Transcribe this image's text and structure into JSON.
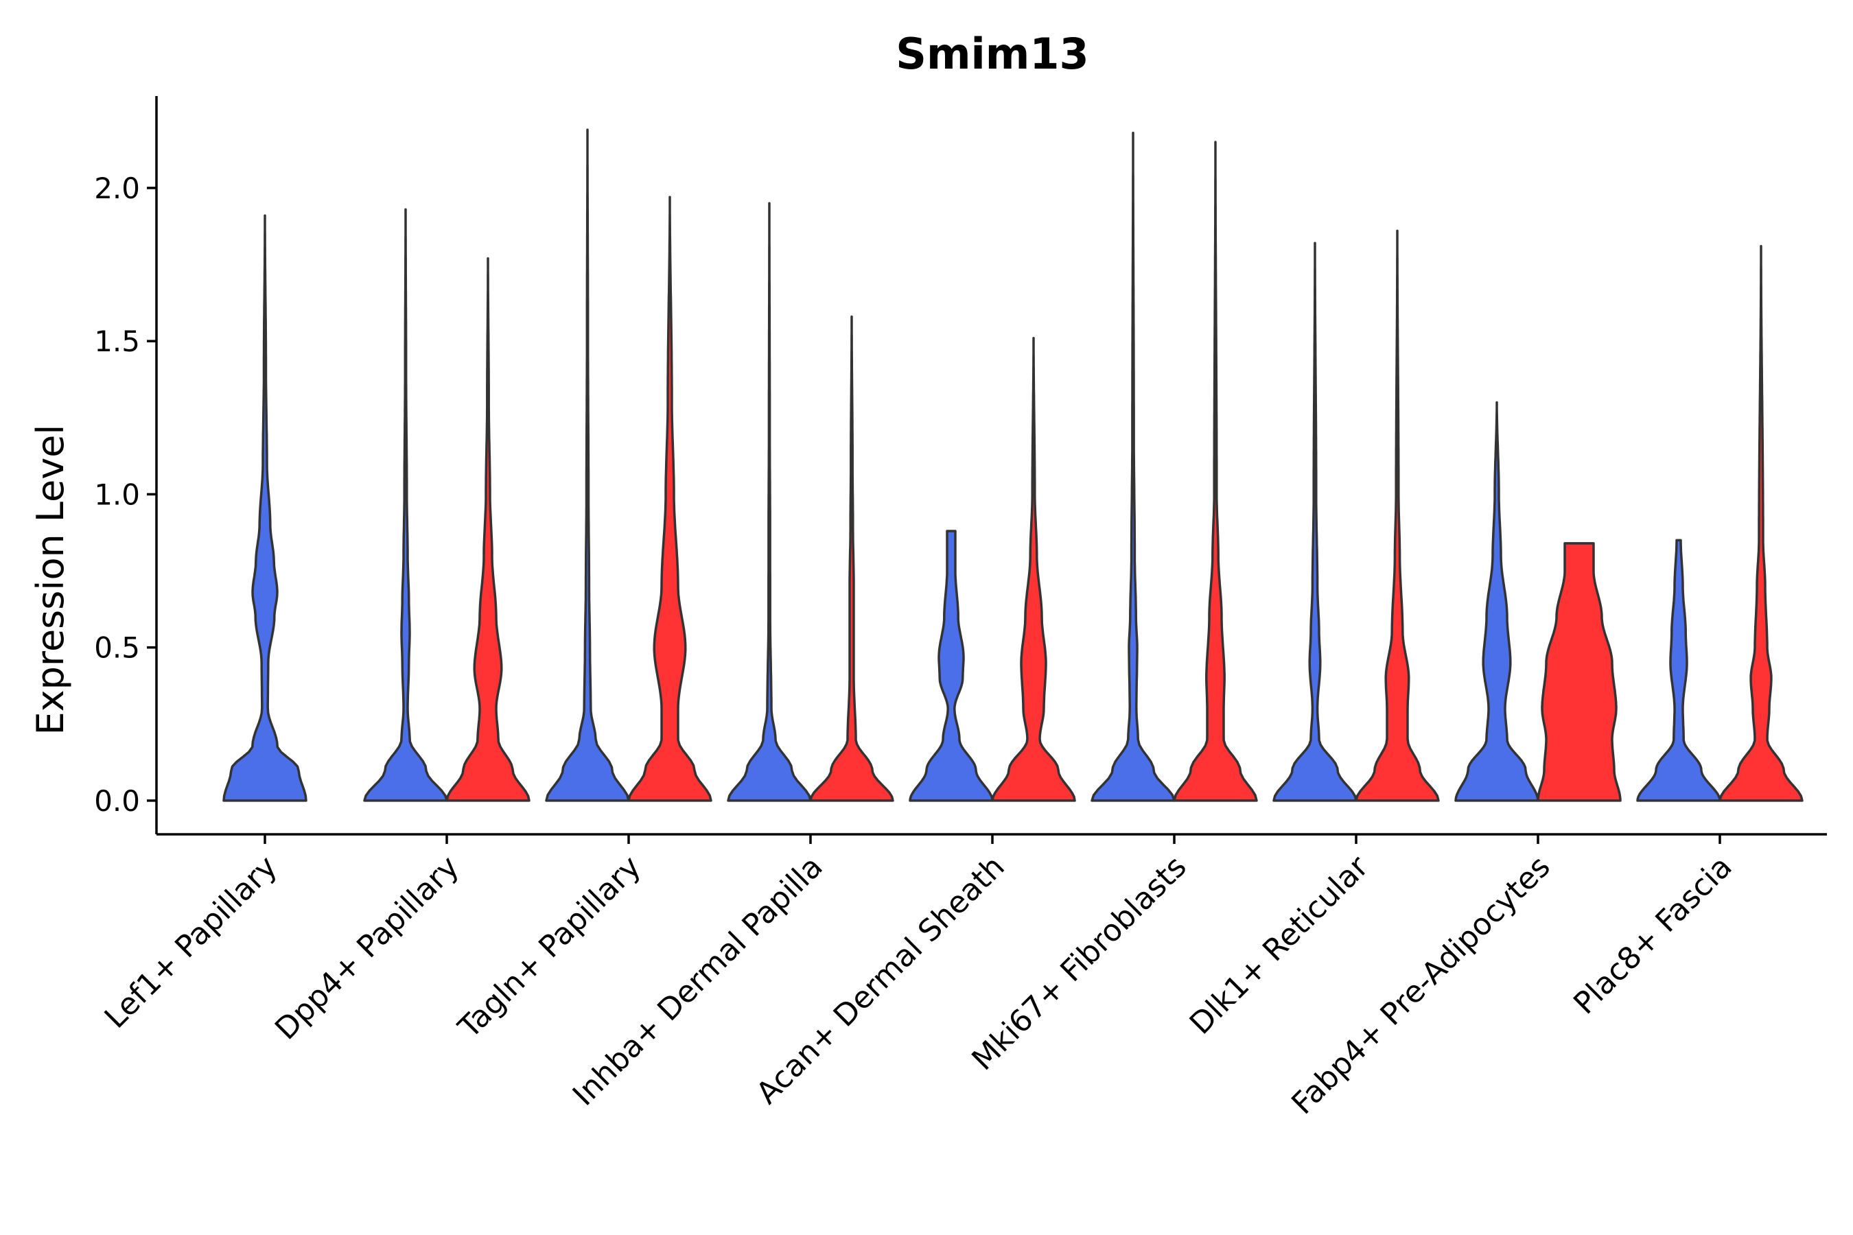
{
  "chart_data": {
    "type": "violin",
    "title": "Smim13",
    "xlabel": "",
    "ylabel": "Expression Level",
    "ylim": [
      -0.11,
      2.3
    ],
    "yticks": [
      0.0,
      0.5,
      1.0,
      1.5,
      2.0
    ],
    "ytick_labels": [
      "0.0",
      "0.5",
      "1.0",
      "1.5",
      "2.0"
    ],
    "categories": [
      "Lef1+ Papillary",
      "Dpp4+ Papillary",
      "Tagln+ Papillary",
      "Inhba+ Dermal Papilla",
      "Acan+ Dermal Sheath",
      "Mki67+ Fibroblasts",
      "Dlk1+ Reticular",
      "Fabp4+ Pre-Adipocytes",
      "Plac8+ Fascia"
    ],
    "series": [
      {
        "name": "blue",
        "color": "#4A6FE8",
        "max_values": [
          1.91,
          1.93,
          2.19,
          1.95,
          0.88,
          2.18,
          1.82,
          1.3,
          0.85
        ],
        "profiles": [
          [
            [
              0,
              1.0
            ],
            [
              0.1,
              0.82
            ],
            [
              0.18,
              0.3
            ],
            [
              0.3,
              0.07
            ],
            [
              0.45,
              0.08
            ],
            [
              0.6,
              0.23
            ],
            [
              0.68,
              0.3
            ],
            [
              0.78,
              0.22
            ],
            [
              0.9,
              0.13
            ],
            [
              1.1,
              0.05
            ],
            [
              1.4,
              0.025
            ],
            [
              1.91,
              0.0
            ]
          ],
          [
            [
              0,
              1.0
            ],
            [
              0.1,
              0.5
            ],
            [
              0.2,
              0.1
            ],
            [
              0.3,
              0.05
            ],
            [
              0.45,
              0.08
            ],
            [
              0.55,
              0.1
            ],
            [
              0.65,
              0.08
            ],
            [
              0.8,
              0.05
            ],
            [
              1.0,
              0.03
            ],
            [
              1.4,
              0.012
            ],
            [
              1.93,
              0.0
            ]
          ],
          [
            [
              0,
              1.0
            ],
            [
              0.1,
              0.6
            ],
            [
              0.2,
              0.2
            ],
            [
              0.3,
              0.08
            ],
            [
              0.5,
              0.06
            ],
            [
              0.7,
              0.04
            ],
            [
              1.0,
              0.025
            ],
            [
              1.5,
              0.012
            ],
            [
              2.19,
              0.0
            ]
          ],
          [
            [
              0,
              1.0
            ],
            [
              0.1,
              0.55
            ],
            [
              0.2,
              0.15
            ],
            [
              0.3,
              0.05
            ],
            [
              0.6,
              0.02
            ],
            [
              0.9,
              0.018
            ],
            [
              1.2,
              0.01
            ],
            [
              1.95,
              0.0
            ]
          ],
          [
            [
              0,
              1.0
            ],
            [
              0.1,
              0.6
            ],
            [
              0.2,
              0.2
            ],
            [
              0.3,
              0.08
            ],
            [
              0.4,
              0.28
            ],
            [
              0.47,
              0.3
            ],
            [
              0.6,
              0.17
            ],
            [
              0.75,
              0.1
            ],
            [
              0.88,
              0.1
            ]
          ],
          [
            [
              0,
              1.0
            ],
            [
              0.1,
              0.5
            ],
            [
              0.2,
              0.12
            ],
            [
              0.3,
              0.08
            ],
            [
              0.5,
              0.1
            ],
            [
              0.6,
              0.07
            ],
            [
              0.8,
              0.04
            ],
            [
              1.2,
              0.018
            ],
            [
              2.18,
              0.0
            ]
          ],
          [
            [
              0,
              1.0
            ],
            [
              0.1,
              0.55
            ],
            [
              0.2,
              0.1
            ],
            [
              0.3,
              0.06
            ],
            [
              0.45,
              0.13
            ],
            [
              0.55,
              0.1
            ],
            [
              0.7,
              0.06
            ],
            [
              1.0,
              0.03
            ],
            [
              1.82,
              0.0
            ]
          ],
          [
            [
              0,
              1.0
            ],
            [
              0.1,
              0.7
            ],
            [
              0.2,
              0.25
            ],
            [
              0.3,
              0.2
            ],
            [
              0.45,
              0.33
            ],
            [
              0.6,
              0.25
            ],
            [
              0.8,
              0.1
            ],
            [
              1.0,
              0.05
            ],
            [
              1.3,
              0.0
            ]
          ],
          [
            [
              0,
              1.0
            ],
            [
              0.1,
              0.55
            ],
            [
              0.2,
              0.12
            ],
            [
              0.3,
              0.1
            ],
            [
              0.45,
              0.2
            ],
            [
              0.55,
              0.17
            ],
            [
              0.7,
              0.1
            ],
            [
              0.85,
              0.05
            ]
          ]
        ]
      },
      {
        "name": "red",
        "color": "#FF3333",
        "max_values": [
          null,
          1.77,
          1.97,
          1.58,
          1.51,
          2.15,
          1.86,
          0.84,
          1.81
        ],
        "profiles": [
          null,
          [
            [
              0,
              1.0
            ],
            [
              0.1,
              0.6
            ],
            [
              0.2,
              0.25
            ],
            [
              0.3,
              0.2
            ],
            [
              0.43,
              0.33
            ],
            [
              0.6,
              0.2
            ],
            [
              0.8,
              0.1
            ],
            [
              1.0,
              0.05
            ],
            [
              1.3,
              0.02
            ],
            [
              1.77,
              0.0
            ]
          ],
          [
            [
              0,
              1.0
            ],
            [
              0.1,
              0.6
            ],
            [
              0.2,
              0.2
            ],
            [
              0.3,
              0.2
            ],
            [
              0.5,
              0.38
            ],
            [
              0.7,
              0.2
            ],
            [
              1.0,
              0.1
            ],
            [
              1.3,
              0.05
            ],
            [
              1.97,
              0.0
            ]
          ],
          [
            [
              0,
              1.0
            ],
            [
              0.1,
              0.5
            ],
            [
              0.2,
              0.1
            ],
            [
              0.4,
              0.05
            ],
            [
              0.7,
              0.05
            ],
            [
              0.9,
              0.03
            ],
            [
              1.1,
              0.02
            ],
            [
              1.58,
              0.0
            ]
          ],
          [
            [
              0,
              1.0
            ],
            [
              0.1,
              0.6
            ],
            [
              0.2,
              0.15
            ],
            [
              0.3,
              0.25
            ],
            [
              0.45,
              0.3
            ],
            [
              0.6,
              0.2
            ],
            [
              0.8,
              0.08
            ],
            [
              1.0,
              0.03
            ],
            [
              1.51,
              0.0
            ]
          ],
          [
            [
              0,
              1.0
            ],
            [
              0.1,
              0.6
            ],
            [
              0.2,
              0.2
            ],
            [
              0.3,
              0.2
            ],
            [
              0.4,
              0.22
            ],
            [
              0.6,
              0.15
            ],
            [
              0.8,
              0.07
            ],
            [
              1.0,
              0.03
            ],
            [
              2.15,
              0.0
            ]
          ],
          [
            [
              0,
              1.0
            ],
            [
              0.1,
              0.55
            ],
            [
              0.2,
              0.25
            ],
            [
              0.3,
              0.25
            ],
            [
              0.4,
              0.28
            ],
            [
              0.55,
              0.13
            ],
            [
              0.8,
              0.06
            ],
            [
              1.0,
              0.03
            ],
            [
              1.86,
              0.0
            ]
          ],
          [
            [
              0,
              1.0
            ],
            [
              0.1,
              0.85
            ],
            [
              0.2,
              0.8
            ],
            [
              0.3,
              0.9
            ],
            [
              0.45,
              0.8
            ],
            [
              0.6,
              0.55
            ],
            [
              0.75,
              0.35
            ],
            [
              0.84,
              0.35
            ]
          ],
          [
            [
              0,
              1.0
            ],
            [
              0.1,
              0.55
            ],
            [
              0.2,
              0.15
            ],
            [
              0.3,
              0.2
            ],
            [
              0.4,
              0.25
            ],
            [
              0.5,
              0.15
            ],
            [
              0.7,
              0.1
            ],
            [
              0.85,
              0.05
            ],
            [
              1.81,
              0.0
            ]
          ]
        ]
      }
    ],
    "legend": "none",
    "grid": false
  }
}
